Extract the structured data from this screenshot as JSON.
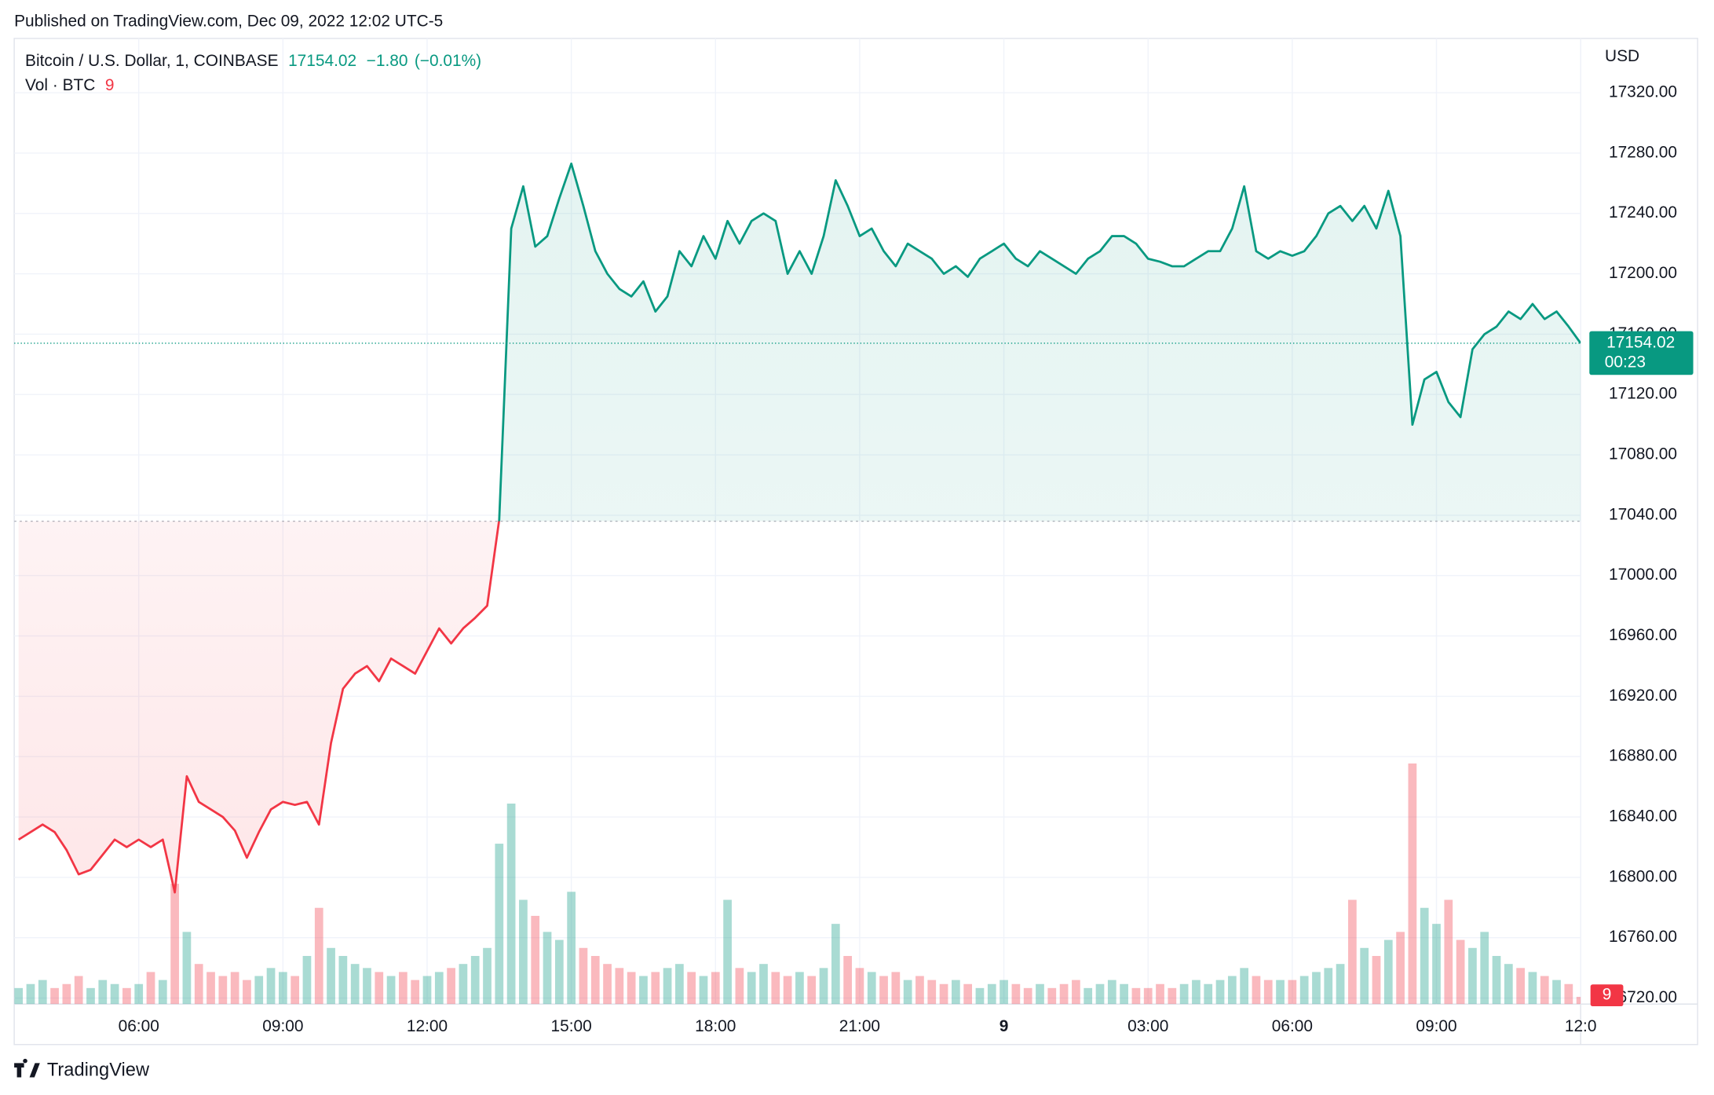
{
  "published": "Published on TradingView.com, Dec 09, 2022 12:02 UTC-5",
  "footer": "TradingView",
  "chart_data": {
    "type": "line",
    "title": "Bitcoin / U.S. Dollar, 1, COINBASE",
    "change_label": "−1.80",
    "change_pct_label": "(−0.01%)",
    "volume_title": "Vol · BTC",
    "currency": "USD",
    "countdown": "00:23",
    "color_up": "#089981",
    "color_down": "#f23645",
    "baseline": 17036,
    "grid": true,
    "categories": [
      null,
      null,
      null,
      null,
      null,
      null,
      null,
      null,
      null,
      null,
      "06:00",
      null,
      null,
      null,
      null,
      null,
      null,
      null,
      null,
      null,
      null,
      null,
      "09:00",
      null,
      null,
      null,
      null,
      null,
      null,
      null,
      null,
      null,
      null,
      null,
      "12:00",
      null,
      null,
      null,
      null,
      null,
      null,
      null,
      null,
      null,
      null,
      null,
      "15:00",
      null,
      null,
      null,
      null,
      null,
      null,
      null,
      null,
      null,
      null,
      null,
      "18:00",
      null,
      null,
      null,
      null,
      null,
      null,
      null,
      null,
      null,
      null,
      null,
      "21:00",
      null,
      null,
      null,
      null,
      null,
      null,
      null,
      null,
      null,
      null,
      null,
      "9",
      null,
      null,
      null,
      null,
      null,
      null,
      null,
      null,
      null,
      null,
      null,
      "03:00",
      null,
      null,
      null,
      null,
      null,
      null,
      null,
      null,
      null,
      null,
      null,
      "06:00",
      null,
      null,
      null,
      null,
      null,
      null,
      null,
      null,
      null,
      null,
      null,
      "09:00",
      null,
      null,
      null,
      null,
      null,
      null,
      null,
      null,
      null,
      null,
      null,
      "12:0"
    ],
    "values": [
      16825,
      16830,
      16835,
      16830,
      16818,
      16802,
      16805,
      16815,
      16825,
      16820,
      16825,
      16820,
      16825,
      16790,
      16867,
      16850,
      16845,
      16840,
      16831,
      16813,
      16830,
      16845,
      16850,
      16848,
      16850,
      16835,
      16889,
      16925,
      16935,
      16940,
      16930,
      16945,
      16940,
      16935,
      16950,
      16965,
      16955,
      16965,
      16972,
      16980,
      17037,
      17230,
      17258,
      17218,
      17225,
      17250,
      17273,
      17245,
      17215,
      17200,
      17190,
      17185,
      17195,
      17175,
      17185,
      17215,
      17205,
      17225,
      17210,
      17235,
      17220,
      17235,
      17240,
      17235,
      17200,
      17215,
      17200,
      17225,
      17262,
      17245,
      17225,
      17230,
      17215,
      17205,
      17220,
      17215,
      17210,
      17200,
      17205,
      17198,
      17210,
      17215,
      17220,
      17210,
      17205,
      17215,
      17210,
      17205,
      17200,
      17210,
      17215,
      17225,
      17225,
      17220,
      17210,
      17208,
      17205,
      17205,
      17210,
      17215,
      17215,
      17230,
      17258,
      17215,
      17210,
      17215,
      17212,
      17215,
      17225,
      17240,
      17245,
      17235,
      17245,
      17230,
      17255,
      17225,
      17100,
      17130,
      17135,
      17115,
      17105,
      17150,
      17160,
      17165,
      17175,
      17170,
      17180,
      17170,
      17175,
      17165,
      17154.02
    ],
    "volume": [
      20,
      25,
      30,
      20,
      25,
      35,
      20,
      30,
      25,
      20,
      25,
      40,
      30,
      150,
      90,
      50,
      40,
      35,
      40,
      30,
      35,
      45,
      40,
      35,
      60,
      120,
      70,
      60,
      50,
      45,
      40,
      35,
      40,
      30,
      35,
      40,
      45,
      50,
      60,
      70,
      200,
      250,
      130,
      110,
      90,
      80,
      140,
      70,
      60,
      50,
      45,
      40,
      35,
      40,
      45,
      50,
      40,
      35,
      40,
      130,
      45,
      40,
      50,
      40,
      35,
      40,
      35,
      45,
      100,
      60,
      45,
      40,
      35,
      40,
      30,
      35,
      30,
      25,
      30,
      25,
      20,
      25,
      30,
      25,
      20,
      25,
      20,
      25,
      30,
      20,
      25,
      30,
      25,
      20,
      20,
      25,
      20,
      25,
      30,
      25,
      30,
      35,
      45,
      35,
      30,
      30,
      30,
      35,
      40,
      45,
      50,
      130,
      70,
      60,
      80,
      90,
      300,
      120,
      100,
      130,
      80,
      70,
      90,
      60,
      50,
      45,
      40,
      35,
      30,
      25,
      9
    ],
    "ylim": [
      16716,
      17356
    ],
    "yticks": [
      {
        "value": 16720,
        "label": "16720.00"
      },
      {
        "value": 16760,
        "label": "16760.00"
      },
      {
        "value": 16800,
        "label": "16800.00"
      },
      {
        "value": 16840,
        "label": "16840.00"
      },
      {
        "value": 16880,
        "label": "16880.00"
      },
      {
        "value": 16920,
        "label": "16920.00"
      },
      {
        "value": 16960,
        "label": "16960.00"
      },
      {
        "value": 17000,
        "label": "17000.00"
      },
      {
        "value": 17040,
        "label": "17040.00"
      },
      {
        "value": 17080,
        "label": "17080.00"
      },
      {
        "value": 17120,
        "label": "17120.00"
      },
      {
        "value": 17160,
        "label": "17160.00"
      },
      {
        "value": 17200,
        "label": "17200.00"
      },
      {
        "value": 17240,
        "label": "17240.00"
      },
      {
        "value": 17280,
        "label": "17280.00"
      },
      {
        "value": 17320,
        "label": "17320.00"
      }
    ]
  }
}
